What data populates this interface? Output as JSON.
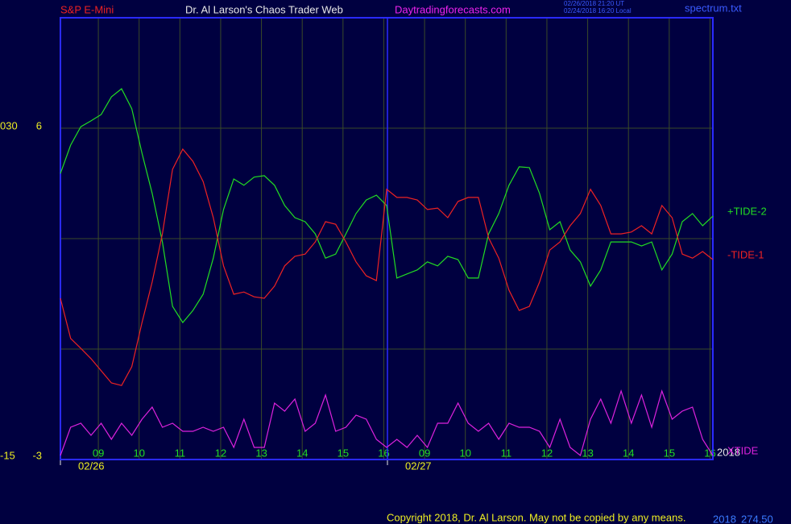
{
  "chart_data": {
    "type": "line",
    "header": {
      "instrument": "S&P E-Mini",
      "title": "Dr. Al Larson's Chaos Trader Web",
      "site": "Daytradingforecasts.com",
      "stamp_1": "02/26/2018 21:20 UT",
      "stamp_2": "02/24/2018 16:20 Local",
      "file": "spectrum.txt"
    },
    "footer": {
      "copyright": "Copyright 2018, Dr. Al Larson. May not be copied by any means.",
      "year": "2018",
      "price": "274.50"
    },
    "corner_label": "2018",
    "xlim": [
      0,
      16
    ],
    "ylim": [
      -3,
      9
    ],
    "y2lim": [
      -15,
      45
    ],
    "yticks": [
      6,
      -3
    ],
    "y2ticks": [
      {
        "value": 30,
        "label": "030"
      },
      -15
    ],
    "ygrid": [
      0,
      3,
      6
    ],
    "xticks": [
      {
        "value": 0.93,
        "label": "09"
      },
      {
        "value": 1.93,
        "label": "10"
      },
      {
        "value": 2.93,
        "label": "11"
      },
      {
        "value": 3.93,
        "label": "12"
      },
      {
        "value": 4.93,
        "label": "13"
      },
      {
        "value": 5.93,
        "label": "14"
      },
      {
        "value": 6.93,
        "label": "15"
      },
      {
        "value": 7.93,
        "label": "16"
      },
      {
        "value": 8.93,
        "label": "09"
      },
      {
        "value": 9.93,
        "label": "10"
      },
      {
        "value": 10.93,
        "label": "11"
      },
      {
        "value": 11.93,
        "label": "12"
      },
      {
        "value": 12.93,
        "label": "13"
      },
      {
        "value": 13.93,
        "label": "14"
      },
      {
        "value": 14.93,
        "label": "15"
      },
      {
        "value": 15.93,
        "label": "16"
      }
    ],
    "xdates": [
      {
        "value": 0,
        "label": "02/26"
      },
      {
        "value": 8.02,
        "label": "02/27"
      }
    ],
    "x": [
      0,
      0.25,
      0.5,
      0.75,
      1,
      1.25,
      1.5,
      1.75,
      2,
      2.25,
      2.5,
      2.75,
      3,
      3.25,
      3.5,
      3.75,
      4,
      4.25,
      4.5,
      4.75,
      5,
      5.25,
      5.5,
      5.75,
      6,
      6.25,
      6.5,
      6.75,
      7,
      7.25,
      7.5,
      7.75,
      8,
      8.25,
      8.5,
      8.75,
      9,
      9.25,
      9.5,
      9.75,
      10,
      10.25,
      10.5,
      10.75,
      11,
      11.25,
      11.5,
      11.75,
      12,
      12.25,
      12.5,
      12.75,
      13,
      13.25,
      13.5,
      13.75,
      14,
      14.25,
      14.5,
      14.75,
      15,
      15.25,
      15.5,
      15.75,
      16
    ],
    "series": [
      {
        "name": "+TIDE-2",
        "color": "#22dd22",
        "values": [
          4.77,
          5.54,
          6.04,
          6.2,
          6.37,
          6.85,
          7.07,
          6.53,
          5.32,
          4.23,
          2.91,
          1.16,
          0.72,
          1.05,
          1.49,
          2.47,
          3.79,
          4.62,
          4.45,
          4.67,
          4.71,
          4.45,
          3.9,
          3.57,
          3.46,
          3.13,
          2.47,
          2.58,
          3.13,
          3.68,
          4.05,
          4.18,
          3.9,
          1.93,
          2.04,
          2.15,
          2.37,
          2.26,
          2.52,
          2.43,
          1.93,
          1.93,
          3.13,
          3.68,
          4.45,
          4.95,
          4.93,
          4.23,
          3.24,
          3.46,
          2.69,
          2.37,
          1.71,
          2.15,
          2.91,
          2.91,
          2.91,
          2.8,
          2.91,
          2.15,
          2.58,
          3.46,
          3.68,
          3.35,
          3.61
        ]
      },
      {
        "name": "-TIDE-1",
        "color": "#ee2222",
        "values": [
          1.38,
          0.29,
          0.02,
          -0.26,
          -0.59,
          -0.92,
          -0.99,
          -0.48,
          0.72,
          1.82,
          3.13,
          4.88,
          5.43,
          5.1,
          4.55,
          3.57,
          2.26,
          1.49,
          1.55,
          1.42,
          1.38,
          1.71,
          2.26,
          2.52,
          2.58,
          2.91,
          3.46,
          3.39,
          2.91,
          2.37,
          1.99,
          1.86,
          4.34,
          4.12,
          4.12,
          4.05,
          3.79,
          3.83,
          3.57,
          4.01,
          4.12,
          4.12,
          3.02,
          2.47,
          1.6,
          1.05,
          1.16,
          1.82,
          2.69,
          2.91,
          3.35,
          3.68,
          4.34,
          3.9,
          3.13,
          3.13,
          3.18,
          3.35,
          3.13,
          3.9,
          3.57,
          2.58,
          2.47,
          2.65,
          2.43
        ]
      },
      {
        "name": "XTIDE",
        "color": "#dd22dd",
        "axis": "y2",
        "values": [
          -14.45,
          -10.62,
          -10.07,
          -11.72,
          -10.07,
          -12.26,
          -10.07,
          -11.72,
          -9.53,
          -7.88,
          -10.62,
          -10.07,
          -11.17,
          -11.17,
          -10.62,
          -11.17,
          -10.62,
          -13.36,
          -9.53,
          -13.36,
          -13.36,
          -7.34,
          -8.43,
          -6.79,
          -11.17,
          -10.07,
          -6.24,
          -11.17,
          -10.62,
          -8.98,
          -9.53,
          -12.26,
          -13.36,
          -12.26,
          -13.36,
          -11.72,
          -13.36,
          -10.07,
          -10.07,
          -7.34,
          -10.07,
          -11.17,
          -10.07,
          -12.26,
          -10.07,
          -10.62,
          -10.62,
          -11.17,
          -13.36,
          -9.53,
          -13.36,
          -14.45,
          -9.53,
          -6.79,
          -10.07,
          -5.69,
          -10.07,
          -6.24,
          -10.62,
          -5.69,
          -9.53,
          -8.43,
          -7.88,
          -12.26,
          -14.45
        ]
      }
    ]
  }
}
